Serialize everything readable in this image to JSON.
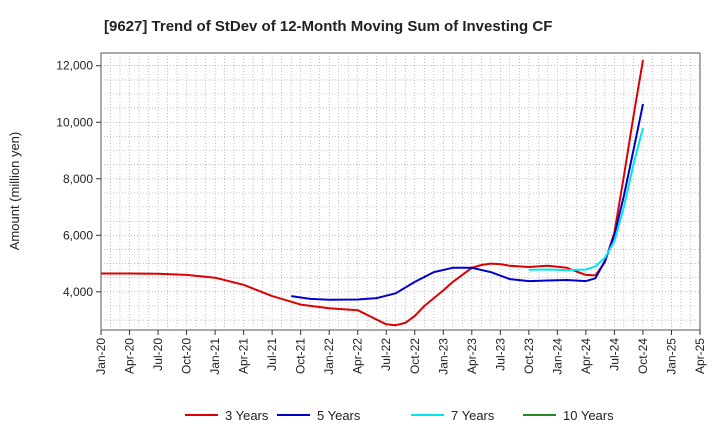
{
  "chart_data": {
    "type": "line",
    "title": "[9627]  Trend of StDev of 12-Month Moving Sum of Investing CF",
    "xlabel": "",
    "ylabel": "Amount (million yen)",
    "x_ticks": [
      "Jan-20",
      "Apr-20",
      "Jul-20",
      "Oct-20",
      "Jan-21",
      "Apr-21",
      "Jul-21",
      "Oct-21",
      "Jan-22",
      "Apr-22",
      "Jul-22",
      "Oct-22",
      "Jan-23",
      "Apr-23",
      "Jul-23",
      "Oct-23",
      "Jan-24",
      "Apr-24",
      "Jul-24",
      "Oct-24",
      "Jan-25",
      "Apr-25"
    ],
    "xlim": [
      "2020-01",
      "2025-04"
    ],
    "y_ticks": [
      "4,000",
      "6,000",
      "8,000",
      "10,000",
      "12,000"
    ],
    "y_tick_values": [
      4000,
      6000,
      8000,
      10000,
      12000
    ],
    "ylim": [
      2650,
      12450
    ],
    "grid": true,
    "legend_position": "bottom",
    "series": [
      {
        "name": "3 Years",
        "color": "#dd0000",
        "points": [
          [
            "2020-01",
            4650
          ],
          [
            "2020-04",
            4650
          ],
          [
            "2020-07",
            4640
          ],
          [
            "2020-10",
            4600
          ],
          [
            "2021-01",
            4500
          ],
          [
            "2021-04",
            4250
          ],
          [
            "2021-07",
            3850
          ],
          [
            "2021-10",
            3550
          ],
          [
            "2022-01",
            3420
          ],
          [
            "2022-04",
            3350
          ],
          [
            "2022-07",
            2850
          ],
          [
            "2022-08",
            2820
          ],
          [
            "2022-09",
            2900
          ],
          [
            "2022-10",
            3150
          ],
          [
            "2022-11",
            3500
          ],
          [
            "2023-01",
            4050
          ],
          [
            "2023-02",
            4350
          ],
          [
            "2023-03",
            4600
          ],
          [
            "2023-04",
            4850
          ],
          [
            "2023-05",
            4950
          ],
          [
            "2023-06",
            5000
          ],
          [
            "2023-07",
            4980
          ],
          [
            "2023-08",
            4920
          ],
          [
            "2023-10",
            4880
          ],
          [
            "2023-12",
            4920
          ],
          [
            "2024-02",
            4850
          ],
          [
            "2024-03",
            4720
          ],
          [
            "2024-04",
            4600
          ],
          [
            "2024-05",
            4580
          ],
          [
            "2024-06",
            5050
          ],
          [
            "2024-07",
            6100
          ],
          [
            "2024-08",
            8100
          ],
          [
            "2024-09",
            10200
          ],
          [
            "2024-10",
            12200
          ]
        ]
      },
      {
        "name": "5 Years",
        "color": "#0000cc",
        "points": [
          [
            "2021-09",
            3850
          ],
          [
            "2021-11",
            3750
          ],
          [
            "2022-01",
            3720
          ],
          [
            "2022-04",
            3730
          ],
          [
            "2022-06",
            3780
          ],
          [
            "2022-08",
            3950
          ],
          [
            "2022-10",
            4350
          ],
          [
            "2022-12",
            4700
          ],
          [
            "2023-02",
            4850
          ],
          [
            "2023-04",
            4850
          ],
          [
            "2023-06",
            4700
          ],
          [
            "2023-08",
            4450
          ],
          [
            "2023-10",
            4380
          ],
          [
            "2023-12",
            4400
          ],
          [
            "2024-02",
            4420
          ],
          [
            "2024-04",
            4380
          ],
          [
            "2024-05",
            4480
          ],
          [
            "2024-06",
            5100
          ],
          [
            "2024-07",
            6000
          ],
          [
            "2024-08",
            7400
          ],
          [
            "2024-09",
            9000
          ],
          [
            "2024-10",
            10650
          ]
        ]
      },
      {
        "name": "7 Years",
        "color": "#00e5ee",
        "points": [
          [
            "2023-10",
            4780
          ],
          [
            "2023-12",
            4790
          ],
          [
            "2024-02",
            4770
          ],
          [
            "2024-04",
            4790
          ],
          [
            "2024-05",
            4900
          ],
          [
            "2024-06",
            5200
          ],
          [
            "2024-07",
            5800
          ],
          [
            "2024-08",
            7000
          ],
          [
            "2024-09",
            8500
          ],
          [
            "2024-10",
            9800
          ]
        ]
      },
      {
        "name": "10 Years",
        "color": "#228b22",
        "points": []
      }
    ]
  }
}
